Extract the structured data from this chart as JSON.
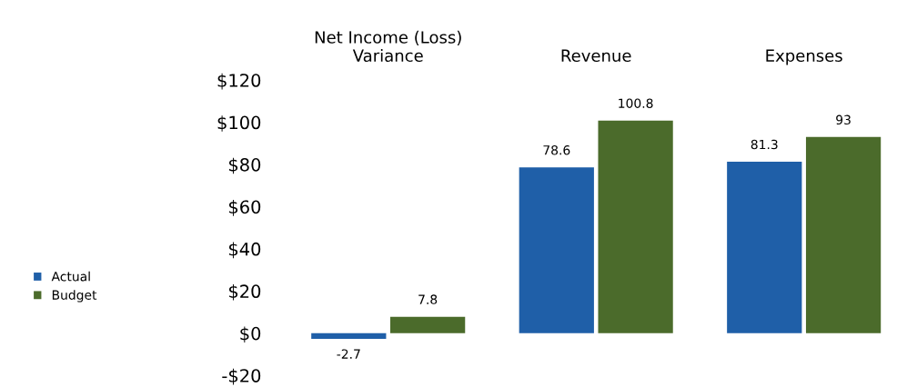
{
  "chart_data": {
    "type": "bar",
    "categories": [
      "Net Income (Loss)\nVariance",
      "Revenue",
      "Expenses"
    ],
    "series": [
      {
        "name": "Actual",
        "color": "#1f5fa8",
        "values": [
          -2.7,
          78.6,
          81.3
        ]
      },
      {
        "name": "Budget",
        "color": "#4b6b2b",
        "values": [
          7.8,
          100.8,
          93
        ]
      }
    ],
    "ylim": [
      -20,
      120
    ],
    "yticks": [
      {
        "value": -20,
        "label": "-$20"
      },
      {
        "value": 0,
        "label": "$0"
      },
      {
        "value": 20,
        "label": "$20"
      },
      {
        "value": 40,
        "label": "$40"
      },
      {
        "value": 60,
        "label": "$60"
      },
      {
        "value": 80,
        "label": "$80"
      },
      {
        "value": 100,
        "label": "$100"
      },
      {
        "value": 120,
        "label": "$120"
      }
    ],
    "data_labels": true,
    "legend": "left",
    "grid": false
  }
}
